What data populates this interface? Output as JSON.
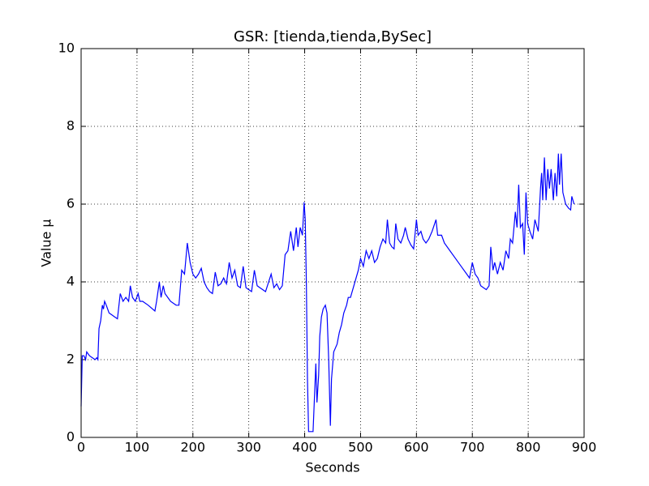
{
  "chart_data": {
    "type": "line",
    "title": "GSR: [tienda,tienda,BySec]",
    "x_label": "Seconds",
    "y_label": "Value μ",
    "xlim": [
      0,
      900
    ],
    "ylim": [
      0,
      10
    ],
    "xticks": [
      0,
      100,
      200,
      300,
      400,
      500,
      600,
      700,
      800,
      900
    ],
    "yticks": [
      0,
      2,
      4,
      6,
      8,
      10
    ],
    "grid": true,
    "x": [
      0,
      2,
      5,
      8,
      10,
      15,
      20,
      25,
      28,
      30,
      32,
      35,
      38,
      40,
      42,
      45,
      50,
      55,
      60,
      65,
      70,
      75,
      80,
      85,
      88,
      92,
      97,
      102,
      105,
      110,
      120,
      128,
      132,
      135,
      140,
      143,
      147,
      150,
      160,
      170,
      175,
      180,
      185,
      190,
      195,
      200,
      205,
      210,
      215,
      220,
      225,
      230,
      235,
      240,
      245,
      250,
      255,
      260,
      265,
      270,
      275,
      280,
      285,
      290,
      295,
      300,
      305,
      310,
      315,
      320,
      330,
      340,
      345,
      350,
      355,
      360,
      365,
      370,
      375,
      380,
      385,
      388,
      392,
      396,
      399,
      401,
      403,
      405,
      407,
      415,
      418,
      420,
      422,
      425,
      427,
      430,
      433,
      437,
      440,
      443,
      446,
      448,
      452,
      458,
      462,
      466,
      470,
      475,
      478,
      482,
      488,
      492,
      496,
      500,
      505,
      510,
      515,
      520,
      525,
      530,
      535,
      540,
      545,
      548,
      552,
      556,
      560,
      563,
      567,
      572,
      577,
      580,
      585,
      590,
      595,
      600,
      603,
      608,
      612,
      617,
      622,
      628,
      635,
      638,
      645,
      650,
      660,
      670,
      680,
      690,
      695,
      700,
      705,
      710,
      715,
      720,
      725,
      730,
      733,
      737,
      740,
      745,
      750,
      755,
      760,
      765,
      768,
      772,
      777,
      780,
      783,
      786,
      790,
      793,
      796,
      799,
      803,
      808,
      812,
      818,
      822,
      824,
      826,
      829,
      832,
      835,
      838,
      841,
      845,
      848,
      851,
      854,
      856,
      859,
      862,
      867,
      872,
      876,
      878,
      882
    ],
    "series": [
      {
        "name": "GSR",
        "color": "#0000ff",
        "values": [
          0.8,
          2.1,
          2.1,
          2.0,
          2.2,
          2.1,
          2.05,
          2.0,
          2.05,
          2.0,
          2.8,
          3.0,
          3.4,
          3.3,
          3.5,
          3.4,
          3.2,
          3.15,
          3.1,
          3.05,
          3.7,
          3.5,
          3.6,
          3.5,
          3.9,
          3.6,
          3.5,
          3.7,
          3.5,
          3.5,
          3.4,
          3.3,
          3.25,
          3.5,
          4.0,
          3.6,
          3.9,
          3.7,
          3.5,
          3.4,
          3.4,
          4.3,
          4.2,
          5.0,
          4.5,
          4.2,
          4.1,
          4.2,
          4.35,
          4.0,
          3.85,
          3.75,
          3.7,
          4.25,
          3.9,
          3.95,
          4.1,
          3.95,
          4.5,
          4.1,
          4.3,
          3.9,
          3.85,
          4.4,
          3.85,
          3.8,
          3.75,
          4.3,
          3.9,
          3.85,
          3.75,
          4.2,
          3.85,
          3.95,
          3.8,
          3.9,
          4.7,
          4.8,
          5.3,
          4.8,
          5.4,
          4.9,
          5.4,
          5.2,
          6.05,
          5.6,
          4.0,
          1.5,
          0.15,
          0.15,
          1.2,
          1.9,
          0.9,
          1.6,
          2.6,
          3.1,
          3.3,
          3.4,
          3.2,
          2.0,
          0.3,
          1.5,
          2.2,
          2.4,
          2.7,
          2.9,
          3.2,
          3.4,
          3.6,
          3.6,
          3.9,
          4.1,
          4.3,
          4.6,
          4.4,
          4.8,
          4.6,
          4.8,
          4.5,
          4.6,
          4.9,
          5.1,
          5.0,
          5.6,
          5.0,
          4.9,
          4.85,
          5.5,
          5.1,
          5.0,
          5.2,
          5.4,
          5.1,
          4.95,
          4.85,
          5.6,
          5.2,
          5.3,
          5.1,
          5.0,
          5.1,
          5.3,
          5.6,
          5.2,
          5.2,
          5.0,
          4.8,
          4.6,
          4.4,
          4.2,
          4.1,
          4.5,
          4.2,
          4.1,
          3.9,
          3.85,
          3.8,
          3.9,
          4.9,
          4.3,
          4.5,
          4.2,
          4.5,
          4.3,
          4.8,
          4.6,
          5.1,
          5.0,
          5.8,
          5.4,
          6.5,
          5.4,
          5.5,
          4.7,
          6.3,
          5.5,
          5.3,
          5.1,
          5.6,
          5.3,
          6.4,
          6.8,
          6.1,
          7.2,
          6.1,
          6.9,
          6.4,
          6.9,
          6.1,
          6.8,
          6.2,
          7.3,
          6.5,
          7.3,
          6.3,
          6.0,
          5.9,
          5.85,
          6.2,
          6.0
        ]
      }
    ]
  }
}
